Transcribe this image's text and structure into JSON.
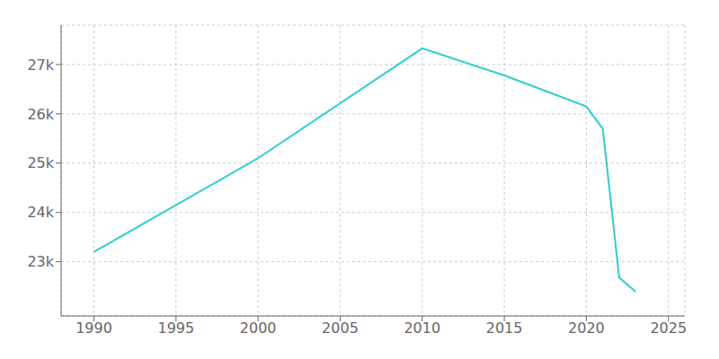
{
  "chart_data": {
    "type": "line",
    "x": [
      1990,
      2000,
      2010,
      2015,
      2020,
      2021,
      2022,
      2023
    ],
    "values": [
      23200,
      25100,
      27330,
      26780,
      26150,
      25700,
      22680,
      22390
    ],
    "color": "#2ecece",
    "xlim": [
      1988,
      2026
    ],
    "ylim": [
      21900,
      27800
    ],
    "xticks": [
      1990,
      1995,
      2000,
      2005,
      2010,
      2015,
      2020,
      2025
    ],
    "yticks": [
      {
        "value": 23000,
        "label": "23k"
      },
      {
        "value": 24000,
        "label": "24k"
      },
      {
        "value": 25000,
        "label": "25k"
      },
      {
        "value": 26000,
        "label": "26k"
      },
      {
        "value": 27000,
        "label": "27k"
      }
    ],
    "grid": true
  }
}
